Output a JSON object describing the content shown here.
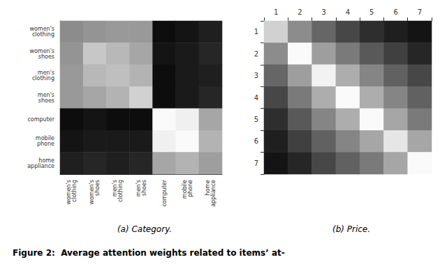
{
  "chart_data": [
    {
      "type": "heatmap",
      "title": "(a) Category.",
      "categories": [
        "women's\nclothing",
        "women's\nshoes",
        "men's\nclothing",
        "men's\nshoes",
        "computer",
        "mobile\nphone",
        "home\nappliance"
      ],
      "values": [
        [
          0.45,
          0.42,
          0.4,
          0.4,
          0.95,
          0.92,
          0.88
        ],
        [
          0.42,
          0.22,
          0.28,
          0.35,
          0.92,
          0.9,
          0.85
        ],
        [
          0.4,
          0.28,
          0.25,
          0.3,
          0.95,
          0.9,
          0.88
        ],
        [
          0.4,
          0.35,
          0.3,
          0.18,
          0.95,
          0.9,
          0.85
        ],
        [
          0.95,
          0.92,
          0.95,
          0.95,
          0.02,
          0.06,
          0.35
        ],
        [
          0.92,
          0.9,
          0.9,
          0.9,
          0.06,
          0.02,
          0.3
        ],
        [
          0.88,
          0.85,
          0.88,
          0.85,
          0.35,
          0.3,
          0.38
        ]
      ],
      "zlim": [
        0,
        1
      ],
      "color": "#000000",
      "annotations": [
        "Figure 2:  Average attention weights related to items’ at-"
      ]
    },
    {
      "type": "heatmap",
      "title": "(b) Price.",
      "categories": [
        "1",
        "2",
        "3",
        "4",
        "5",
        "6",
        "7"
      ],
      "values": [
        [
          0.18,
          0.45,
          0.6,
          0.72,
          0.82,
          0.88,
          0.92
        ],
        [
          0.45,
          0.02,
          0.38,
          0.52,
          0.65,
          0.75,
          0.85
        ],
        [
          0.6,
          0.38,
          0.05,
          0.32,
          0.48,
          0.62,
          0.72
        ],
        [
          0.72,
          0.52,
          0.32,
          0.02,
          0.32,
          0.48,
          0.62
        ],
        [
          0.82,
          0.65,
          0.48,
          0.32,
          0.02,
          0.35,
          0.52
        ],
        [
          0.88,
          0.75,
          0.62,
          0.48,
          0.35,
          0.1,
          0.35
        ],
        [
          0.92,
          0.85,
          0.72,
          0.62,
          0.52,
          0.35,
          0.02
        ]
      ],
      "zlim": [
        0,
        1
      ],
      "color": "#000000"
    }
  ]
}
